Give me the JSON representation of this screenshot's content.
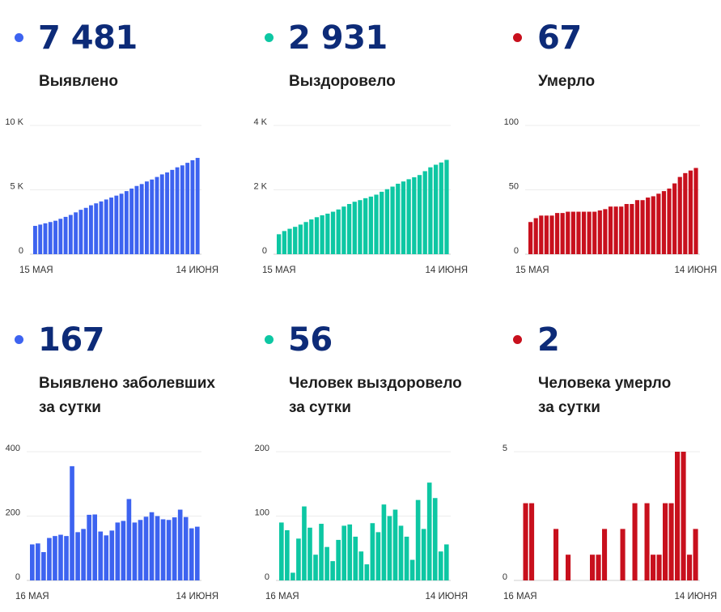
{
  "colors": {
    "blue": "#3d63f0",
    "teal": "#0dc7a3",
    "red": "#c8101d",
    "number": "#0d2b78"
  },
  "stats": [
    {
      "value": "7 481",
      "label_line1": "Выявлено",
      "label_line2": "",
      "color": "#3d63f0"
    },
    {
      "value": "2 931",
      "label_line1": "Выздоровело",
      "label_line2": "",
      "color": "#0dc7a3"
    },
    {
      "value": "67",
      "label_line1": "Умерло",
      "label_line2": "",
      "color": "#c8101d"
    },
    {
      "value": "167",
      "label_line1": "Выявлено заболевших",
      "label_line2": "за сутки",
      "color": "#3d63f0"
    },
    {
      "value": "56",
      "label_line1": "Человек выздоровело",
      "label_line2": "за сутки",
      "color": "#0dc7a3"
    },
    {
      "value": "2",
      "label_line1": "Человека умерло",
      "label_line2": "за сутки",
      "color": "#c8101d"
    }
  ],
  "chart_data": [
    {
      "type": "bar",
      "color": "#3d63f0",
      "ylim": [
        0,
        10000
      ],
      "yticks": [
        0,
        5000,
        10000
      ],
      "ytick_labels": [
        "0",
        "5 K",
        "10 K"
      ],
      "x_start": "15 МАЯ",
      "x_end": "14 ИЮНЯ",
      "grid": true,
      "values": [
        2200,
        2300,
        2400,
        2500,
        2600,
        2750,
        2900,
        3050,
        3250,
        3450,
        3600,
        3800,
        3950,
        4100,
        4250,
        4400,
        4550,
        4700,
        4900,
        5100,
        5300,
        5450,
        5650,
        5800,
        6000,
        6200,
        6350,
        6550,
        6750,
        6900,
        7100,
        7300,
        7481
      ]
    },
    {
      "type": "bar",
      "color": "#0dc7a3",
      "ylim": [
        0,
        4000
      ],
      "yticks": [
        0,
        2000,
        4000
      ],
      "ytick_labels": [
        "0",
        "2 K",
        "4 K"
      ],
      "x_start": "15 МАЯ",
      "x_end": "14 ИЮНЯ",
      "grid": true,
      "values": [
        620,
        720,
        790,
        850,
        920,
        1000,
        1080,
        1150,
        1210,
        1260,
        1320,
        1390,
        1480,
        1560,
        1630,
        1680,
        1740,
        1790,
        1850,
        1940,
        2020,
        2100,
        2190,
        2260,
        2330,
        2390,
        2460,
        2580,
        2700,
        2780,
        2850,
        2931
      ]
    },
    {
      "type": "bar",
      "color": "#c8101d",
      "ylim": [
        0,
        100
      ],
      "yticks": [
        0,
        50,
        100
      ],
      "ytick_labels": [
        "0",
        "50",
        "100"
      ],
      "x_start": "15 МАЯ",
      "x_end": "14 ИЮНЯ",
      "grid": true,
      "values": [
        25,
        28,
        30,
        30,
        30,
        32,
        32,
        33,
        33,
        33,
        33,
        33,
        33,
        34,
        35,
        37,
        37,
        37,
        39,
        39,
        42,
        42,
        44,
        45,
        47,
        49,
        51,
        55,
        60,
        63,
        65,
        67
      ]
    },
    {
      "type": "bar",
      "color": "#3d63f0",
      "ylim": [
        0,
        400
      ],
      "yticks": [
        0,
        200,
        400
      ],
      "ytick_labels": [
        "0",
        "200",
        "400"
      ],
      "x_start": "16 МАЯ",
      "x_end": "14 ИЮНЯ",
      "grid": true,
      "values": [
        112,
        115,
        88,
        132,
        138,
        142,
        138,
        355,
        150,
        160,
        204,
        205,
        152,
        140,
        155,
        180,
        185,
        253,
        180,
        188,
        198,
        212,
        200,
        190,
        188,
        196,
        220,
        197,
        162,
        167
      ]
    },
    {
      "type": "bar",
      "color": "#0dc7a3",
      "ylim": [
        0,
        200
      ],
      "yticks": [
        0,
        100,
        200
      ],
      "ytick_labels": [
        "0",
        "100",
        "200"
      ],
      "x_start": "16 МАЯ",
      "x_end": "14 ИЮНЯ",
      "grid": true,
      "values": [
        90,
        78,
        12,
        65,
        115,
        82,
        40,
        88,
        52,
        30,
        63,
        85,
        87,
        68,
        45,
        25,
        89,
        75,
        118,
        100,
        110,
        85,
        68,
        32,
        125,
        80,
        152,
        128,
        45,
        56
      ]
    },
    {
      "type": "bar",
      "color": "#c8101d",
      "ylim": [
        0,
        5
      ],
      "yticks": [
        0,
        5
      ],
      "ytick_labels": [
        "0",
        "5"
      ],
      "x_start": "16 МАЯ",
      "x_end": "14 ИЮНЯ",
      "grid": true,
      "values": [
        0,
        3,
        3,
        0,
        0,
        0,
        2,
        0,
        1,
        0,
        0,
        0,
        1,
        1,
        2,
        0,
        0,
        2,
        0,
        3,
        0,
        3,
        1,
        1,
        3,
        3,
        5,
        5,
        1,
        2
      ]
    }
  ]
}
